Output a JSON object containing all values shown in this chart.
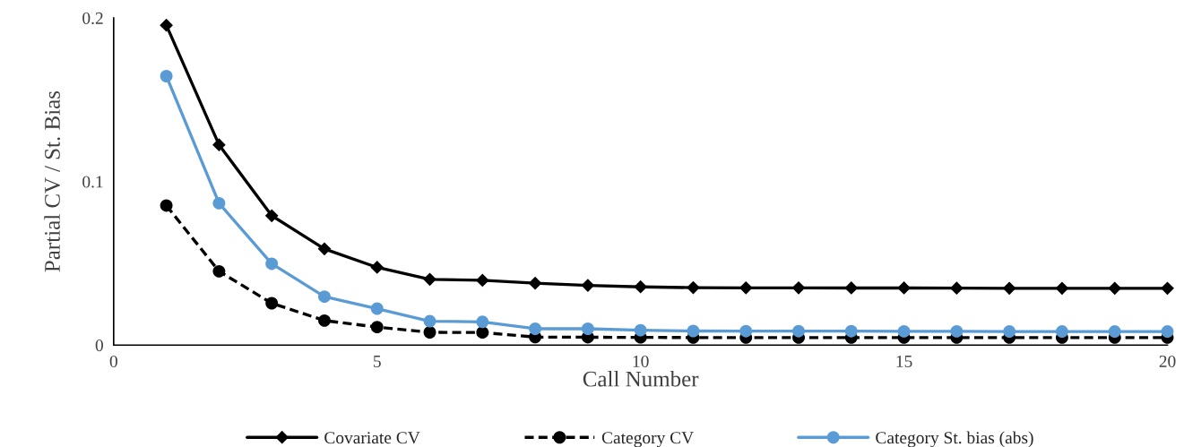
{
  "chart_data": {
    "type": "line",
    "xlabel": "Call Number",
    "ylabel": "Partial CV / St. Bias",
    "x": [
      1,
      2,
      3,
      4,
      5,
      6,
      7,
      8,
      9,
      10,
      11,
      12,
      13,
      14,
      15,
      16,
      17,
      18,
      19,
      20
    ],
    "series": [
      {
        "name": "Covariate CV",
        "color": "#000000",
        "marker": "diamond",
        "line_style": "solid",
        "values": [
          0.1955,
          0.1224,
          0.0791,
          0.0588,
          0.0475,
          0.0402,
          0.0396,
          0.0378,
          0.0365,
          0.0356,
          0.0351,
          0.035,
          0.035,
          0.0349,
          0.0349,
          0.0348,
          0.0347,
          0.0347,
          0.0347,
          0.0347
        ]
      },
      {
        "name": "Category CV",
        "color": "#000000",
        "marker": "circle",
        "line_style": "dashed",
        "values": [
          0.0853,
          0.0451,
          0.0256,
          0.015,
          0.011,
          0.0078,
          0.0077,
          0.0049,
          0.0048,
          0.0047,
          0.0046,
          0.0046,
          0.0046,
          0.0046,
          0.0046,
          0.0046,
          0.0046,
          0.0046,
          0.0046,
          0.0046
        ]
      },
      {
        "name": "Category St. bias (abs)",
        "color": "#5b9bd5",
        "marker": "circle",
        "line_style": "solid",
        "values": [
          0.1644,
          0.0867,
          0.0497,
          0.0296,
          0.0223,
          0.0146,
          0.0142,
          0.01,
          0.01,
          0.0091,
          0.0086,
          0.0085,
          0.0085,
          0.0085,
          0.0084,
          0.0084,
          0.0083,
          0.0083,
          0.0083,
          0.0083
        ]
      }
    ],
    "xlim": [
      0,
      20
    ],
    "xticks": [
      0,
      5,
      10,
      15,
      20
    ],
    "ylim": [
      0,
      0.2
    ],
    "yticks": [
      0,
      0.1,
      0.2
    ],
    "grid": false,
    "legend": "bottom"
  }
}
